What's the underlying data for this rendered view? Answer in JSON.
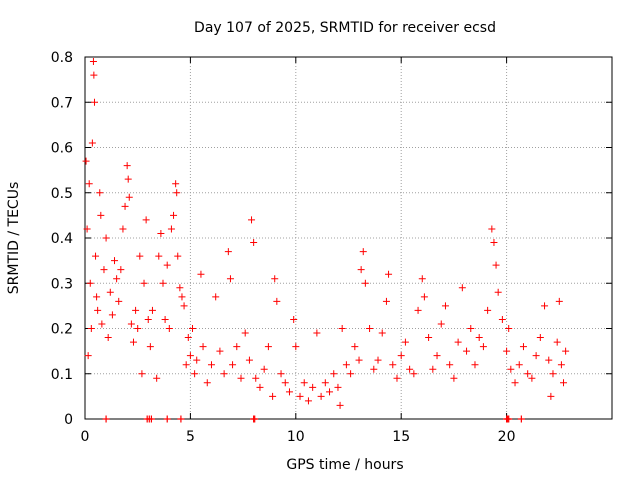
{
  "chart_data": {
    "type": "scatter",
    "title": "Day 107 of 2025, SRMTID for receiver ecsd",
    "xlabel": "GPS time / hours",
    "ylabel": "SRMTID / TECUs",
    "xlim": [
      0,
      25
    ],
    "ylim": [
      0,
      0.8
    ],
    "xticks": [
      0,
      5,
      10,
      15,
      20
    ],
    "xtick_labels": [
      "0",
      "5",
      "10",
      "15",
      "20"
    ],
    "yticks": [
      0,
      0.1,
      0.2,
      0.3,
      0.4,
      0.5,
      0.6,
      0.7,
      0.8
    ],
    "ytick_labels": [
      "0",
      "0.1",
      "0.2",
      "0.3",
      "0.4",
      "0.5",
      "0.6",
      "0.7",
      "0.8"
    ],
    "grid": true,
    "marker": "+",
    "color": "#ff0000",
    "series": [
      {
        "name": "SRMTID",
        "points": [
          [
            0.05,
            0.57
          ],
          [
            0.1,
            0.42
          ],
          [
            0.15,
            0.14
          ],
          [
            0.2,
            0.52
          ],
          [
            0.25,
            0.3
          ],
          [
            0.3,
            0.2
          ],
          [
            0.35,
            0.61
          ],
          [
            0.4,
            0.79
          ],
          [
            0.42,
            0.76
          ],
          [
            0.45,
            0.7
          ],
          [
            0.5,
            0.36
          ],
          [
            0.55,
            0.27
          ],
          [
            0.6,
            0.24
          ],
          [
            0.7,
            0.5
          ],
          [
            0.75,
            0.45
          ],
          [
            0.8,
            0.21
          ],
          [
            0.9,
            0.33
          ],
          [
            1.0,
            0.4
          ],
          [
            1.1,
            0.18
          ],
          [
            1.2,
            0.28
          ],
          [
            1.3,
            0.23
          ],
          [
            1.4,
            0.35
          ],
          [
            1.5,
            0.31
          ],
          [
            1.6,
            0.26
          ],
          [
            1.7,
            0.33
          ],
          [
            1.8,
            0.42
          ],
          [
            1.9,
            0.47
          ],
          [
            2.0,
            0.56
          ],
          [
            2.05,
            0.53
          ],
          [
            2.1,
            0.49
          ],
          [
            2.2,
            0.21
          ],
          [
            2.3,
            0.17
          ],
          [
            2.4,
            0.24
          ],
          [
            2.5,
            0.2
          ],
          [
            2.6,
            0.36
          ],
          [
            2.7,
            0.1
          ],
          [
            2.8,
            0.3
          ],
          [
            2.9,
            0.44
          ],
          [
            3.0,
            0.22
          ],
          [
            3.1,
            0.16
          ],
          [
            3.2,
            0.24
          ],
          [
            3.4,
            0.09
          ],
          [
            3.5,
            0.36
          ],
          [
            3.6,
            0.41
          ],
          [
            3.7,
            0.3
          ],
          [
            3.8,
            0.22
          ],
          [
            3.9,
            0.34
          ],
          [
            4.0,
            0.2
          ],
          [
            4.1,
            0.42
          ],
          [
            4.2,
            0.45
          ],
          [
            4.3,
            0.52
          ],
          [
            4.35,
            0.5
          ],
          [
            4.4,
            0.36
          ],
          [
            4.5,
            0.29
          ],
          [
            4.6,
            0.27
          ],
          [
            4.7,
            0.25
          ],
          [
            4.8,
            0.12
          ],
          [
            4.9,
            0.18
          ],
          [
            5.0,
            0.14
          ],
          [
            5.1,
            0.2
          ],
          [
            5.2,
            0.1
          ],
          [
            5.3,
            0.13
          ],
          [
            5.5,
            0.32
          ],
          [
            5.6,
            0.16
          ],
          [
            5.8,
            0.08
          ],
          [
            6.0,
            0.12
          ],
          [
            6.2,
            0.27
          ],
          [
            6.4,
            0.15
          ],
          [
            6.6,
            0.1
          ],
          [
            6.8,
            0.37
          ],
          [
            6.9,
            0.31
          ],
          [
            7.0,
            0.12
          ],
          [
            7.2,
            0.16
          ],
          [
            7.4,
            0.09
          ],
          [
            7.6,
            0.19
          ],
          [
            7.8,
            0.13
          ],
          [
            7.9,
            0.44
          ],
          [
            8.0,
            0.39
          ],
          [
            8.1,
            0.09
          ],
          [
            8.3,
            0.07
          ],
          [
            8.5,
            0.11
          ],
          [
            8.7,
            0.16
          ],
          [
            8.9,
            0.05
          ],
          [
            9.0,
            0.31
          ],
          [
            9.1,
            0.26
          ],
          [
            9.3,
            0.1
          ],
          [
            9.5,
            0.08
          ],
          [
            9.7,
            0.06
          ],
          [
            9.9,
            0.22
          ],
          [
            10.0,
            0.16
          ],
          [
            10.2,
            0.05
          ],
          [
            10.4,
            0.08
          ],
          [
            10.6,
            0.04
          ],
          [
            10.8,
            0.07
          ],
          [
            11.0,
            0.19
          ],
          [
            11.2,
            0.05
          ],
          [
            11.4,
            0.08
          ],
          [
            11.6,
            0.06
          ],
          [
            11.8,
            0.1
          ],
          [
            12.0,
            0.07
          ],
          [
            12.1,
            0.03
          ],
          [
            12.2,
            0.2
          ],
          [
            12.4,
            0.12
          ],
          [
            12.6,
            0.1
          ],
          [
            12.8,
            0.16
          ],
          [
            13.0,
            0.13
          ],
          [
            13.1,
            0.33
          ],
          [
            13.2,
            0.37
          ],
          [
            13.3,
            0.3
          ],
          [
            13.5,
            0.2
          ],
          [
            13.7,
            0.11
          ],
          [
            13.9,
            0.13
          ],
          [
            14.1,
            0.19
          ],
          [
            14.3,
            0.26
          ],
          [
            14.4,
            0.32
          ],
          [
            14.6,
            0.12
          ],
          [
            14.8,
            0.09
          ],
          [
            15.0,
            0.14
          ],
          [
            15.2,
            0.17
          ],
          [
            15.4,
            0.11
          ],
          [
            15.6,
            0.1
          ],
          [
            15.8,
            0.24
          ],
          [
            16.0,
            0.31
          ],
          [
            16.1,
            0.27
          ],
          [
            16.3,
            0.18
          ],
          [
            16.5,
            0.11
          ],
          [
            16.7,
            0.14
          ],
          [
            16.9,
            0.21
          ],
          [
            17.1,
            0.25
          ],
          [
            17.3,
            0.12
          ],
          [
            17.5,
            0.09
          ],
          [
            17.7,
            0.17
          ],
          [
            17.9,
            0.29
          ],
          [
            18.1,
            0.15
          ],
          [
            18.3,
            0.2
          ],
          [
            18.5,
            0.12
          ],
          [
            18.7,
            0.18
          ],
          [
            18.9,
            0.16
          ],
          [
            19.1,
            0.24
          ],
          [
            19.3,
            0.42
          ],
          [
            19.4,
            0.39
          ],
          [
            19.5,
            0.34
          ],
          [
            19.6,
            0.28
          ],
          [
            19.8,
            0.22
          ],
          [
            20.0,
            0.15
          ],
          [
            20.1,
            0.2
          ],
          [
            20.2,
            0.11
          ],
          [
            20.4,
            0.08
          ],
          [
            20.6,
            0.12
          ],
          [
            20.8,
            0.16
          ],
          [
            21.0,
            0.1
          ],
          [
            21.2,
            0.09
          ],
          [
            21.4,
            0.14
          ],
          [
            21.6,
            0.18
          ],
          [
            21.8,
            0.25
          ],
          [
            22.0,
            0.13
          ],
          [
            22.1,
            0.05
          ],
          [
            22.2,
            0.1
          ],
          [
            22.4,
            0.17
          ],
          [
            22.5,
            0.26
          ],
          [
            22.6,
            0.12
          ],
          [
            22.7,
            0.08
          ],
          [
            22.8,
            0.15
          ]
        ]
      }
    ]
  }
}
